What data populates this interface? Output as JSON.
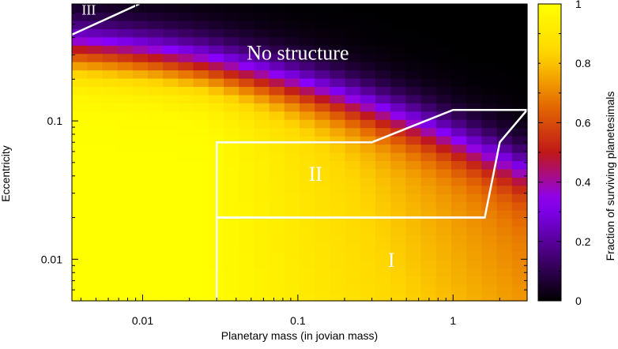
{
  "chart_data": {
    "type": "heatmap",
    "xlabel": "Planetary mass (in jovian mass)",
    "ylabel": "Eccentricity",
    "colorbar_label": "Fraction of surviving planetesimals",
    "x_scale": "log",
    "y_scale": "log",
    "xlim": [
      0.0035,
      3.0
    ],
    "ylim": [
      0.005,
      0.7
    ],
    "x_ticks": [
      {
        "value": 0.01,
        "label": "0.01"
      },
      {
        "value": 0.1,
        "label": "0.1"
      },
      {
        "value": 1,
        "label": "1"
      }
    ],
    "y_ticks": [
      {
        "value": 0.01,
        "label": "0.01"
      },
      {
        "value": 0.1,
        "label": "0.1"
      }
    ],
    "colorbar": {
      "range": [
        0,
        1
      ],
      "ticks": [
        {
          "value": 0,
          "label": "0"
        },
        {
          "value": 0.2,
          "label": "0.2"
        },
        {
          "value": 0.4,
          "label": "0.4"
        },
        {
          "value": 0.6,
          "label": "0.6"
        },
        {
          "value": 0.8,
          "label": "0.8"
        },
        {
          "value": 1,
          "label": "1"
        }
      ],
      "colors": [
        "#000000",
        "#4b0082",
        "#8a00ff",
        "#c01818",
        "#e66f00",
        "#ffd700",
        "#ffff00"
      ]
    },
    "model_description": "Fraction surviving approximated: 1 in lower-left; falls off toward high mass / high eccentricity; near 0 above e~0.35",
    "regions": [
      {
        "name": "No structure",
        "label": "No structure",
        "label_at": [
          0.1,
          0.3
        ]
      },
      {
        "name": "I",
        "label": "I",
        "label_at": [
          0.4,
          0.0095
        ],
        "boundary": [
          [
            0.03,
            0.005
          ],
          [
            0.03,
            0.02
          ],
          [
            1.6,
            0.02
          ]
        ]
      },
      {
        "name": "II",
        "label": "II",
        "label_at": [
          0.13,
          0.04
        ],
        "boundary": [
          [
            0.03,
            0.02
          ],
          [
            0.03,
            0.07
          ],
          [
            0.3,
            0.07
          ],
          [
            1.0,
            0.12
          ],
          [
            3.0,
            0.12
          ],
          [
            2.0,
            0.07
          ],
          [
            1.6,
            0.02
          ],
          [
            0.03,
            0.02
          ]
        ]
      },
      {
        "name": "III",
        "label": "III",
        "label_at": [
          0.0045,
          0.62
        ],
        "boundary": [
          [
            0.0035,
            0.42
          ],
          [
            0.0095,
            0.7
          ]
        ]
      }
    ]
  }
}
